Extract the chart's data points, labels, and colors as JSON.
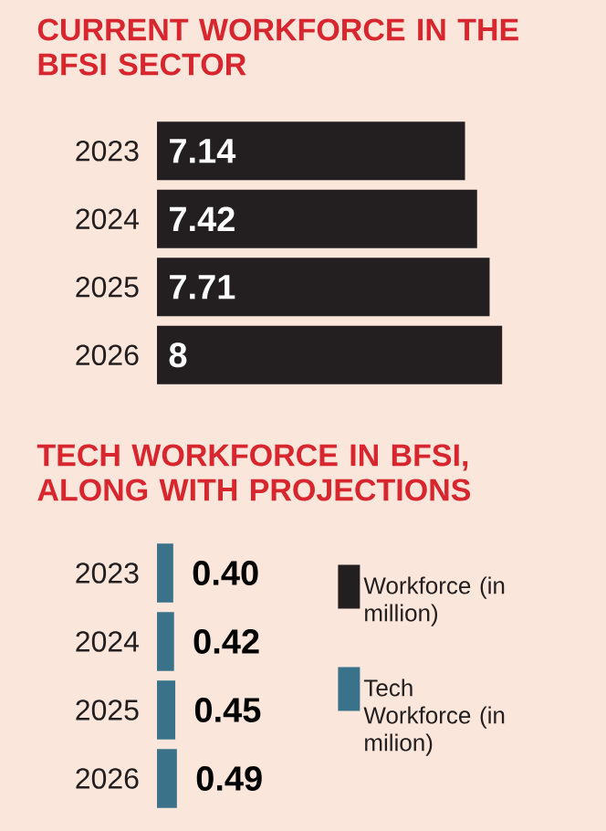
{
  "chart_data": [
    {
      "type": "bar",
      "orientation": "horizontal",
      "title": "CURRENT WORKFORCE IN THE BFSI SECTOR",
      "categories": [
        "2023",
        "2024",
        "2025",
        "2026"
      ],
      "series": [
        {
          "name": "Workforce (in million)",
          "color": "#231f20",
          "values": [
            7.14,
            7.42,
            7.71,
            8
          ]
        }
      ],
      "tick_labels": "y",
      "data_labels": true,
      "legend": "bottom right"
    },
    {
      "type": "bar",
      "orientation": "horizontal",
      "title": "TECH WORKFORCE IN BFSI, ALONG WITH PROJECTIONS",
      "categories": [
        "2023",
        "2024",
        "2025",
        "2026"
      ],
      "series": [
        {
          "name": "Tech Workforce (in milion)",
          "color": "#3a7289",
          "values": [
            0.4,
            0.42,
            0.45,
            0.49
          ],
          "value_labels": [
            "0.40",
            "0.42",
            "0.45",
            "0.49"
          ]
        }
      ],
      "tick_labels": "y",
      "legend": "right"
    }
  ]
}
